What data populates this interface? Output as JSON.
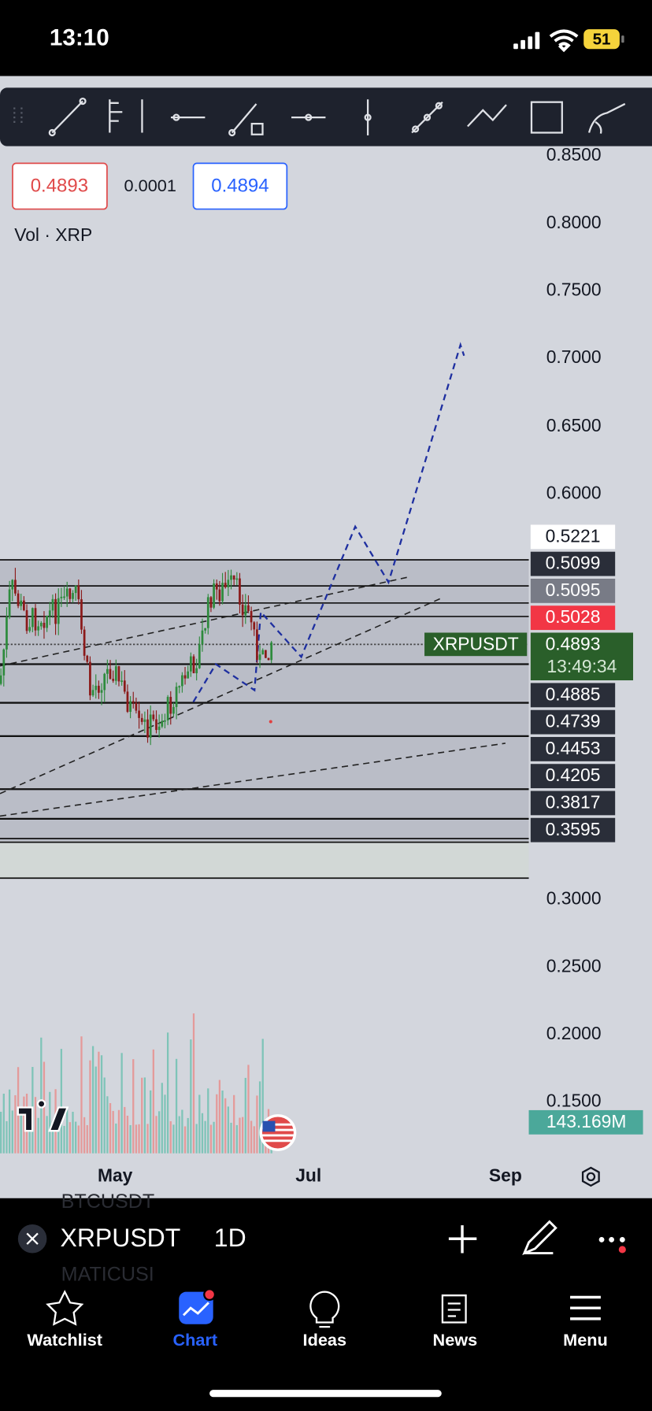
{
  "status_bar": {
    "time": "13:10",
    "battery": "51"
  },
  "chart": {
    "bid": "0.4893",
    "spread": "0.0001",
    "ask": "0.4894",
    "volume_legend": "Vol · XRP",
    "price_axis": [
      "0.8500",
      "0.8000",
      "0.7500",
      "0.7000",
      "0.6500",
      "0.6000",
      "0.3000",
      "0.2500",
      "0.2000",
      "0.1500"
    ],
    "levels": [
      "0.5221",
      "0.5099",
      "0.5095",
      "0.5028",
      "0.4893",
      "0.4885",
      "0.4739",
      "0.4453",
      "0.4205",
      "0.3817",
      "0.3595"
    ],
    "countdown": "13:49:34",
    "symbol_tag": "XRPUSDT",
    "volume_value": "143.169M",
    "x_labels": [
      "May",
      "Jul",
      "Sep"
    ]
  },
  "symbol_bar": {
    "symbol": "XRPUSDT",
    "interval": "1D",
    "ghost": [
      "BTCUSDT",
      "MATICUSI"
    ]
  },
  "nav": [
    "Watchlist",
    "Chart",
    "Ideas",
    "News",
    "Menu"
  ]
}
